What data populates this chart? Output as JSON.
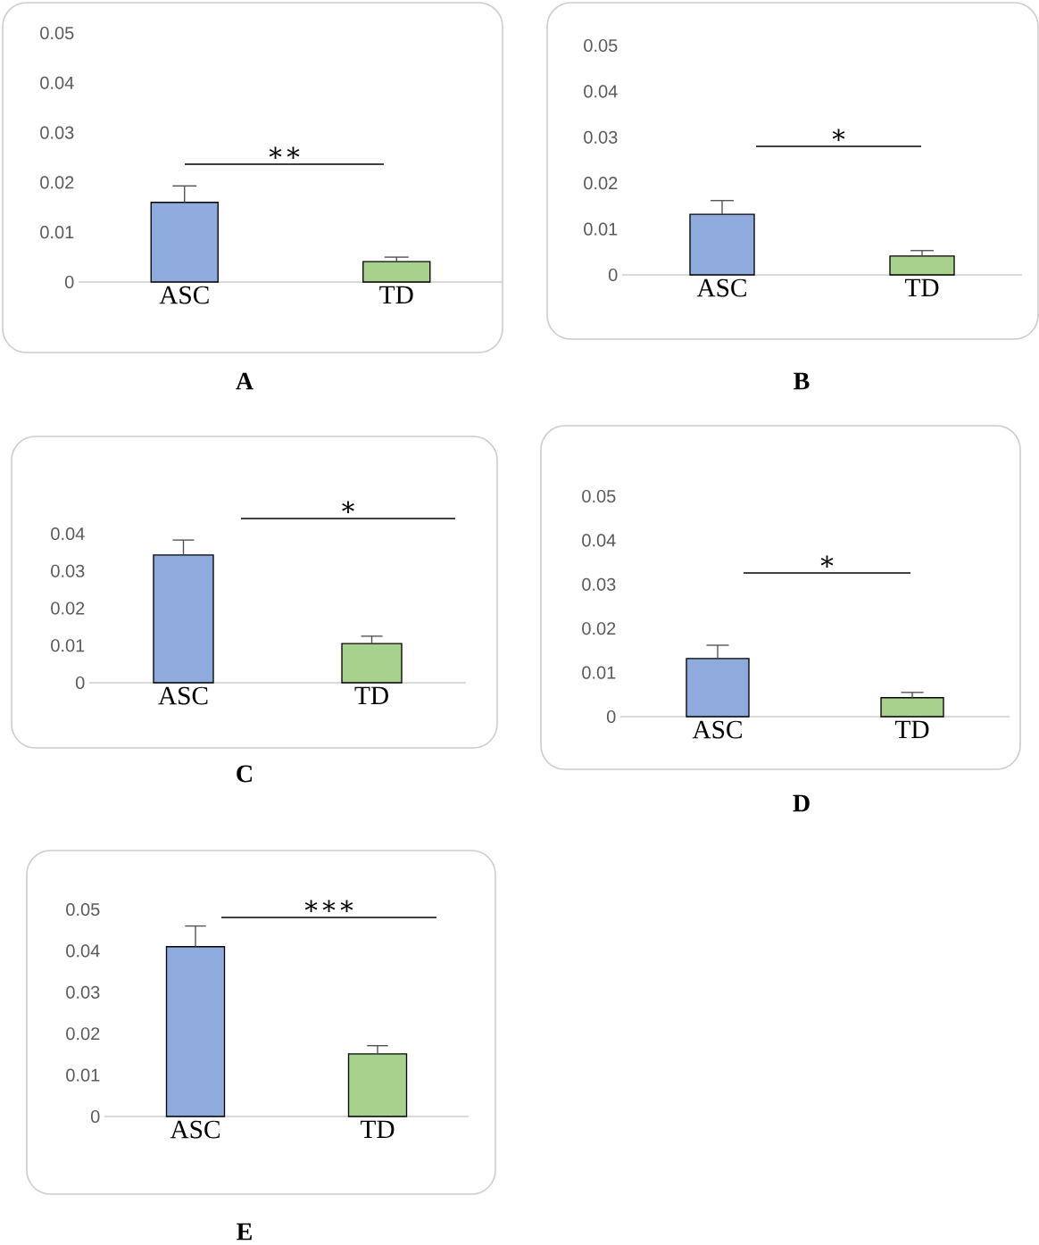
{
  "chart_data": [
    {
      "type": "bar",
      "title": "A",
      "categories": [
        "ASC",
        "TD"
      ],
      "values": [
        0.016,
        0.0041
      ],
      "errors": [
        0.0033,
        0.0009
      ],
      "colors": [
        "#8faadc",
        "#a9d18e"
      ],
      "ylim": [
        0,
        0.05
      ],
      "yticks": [
        0,
        0.01,
        0.02,
        0.03,
        0.04,
        0.05
      ],
      "annotations": [
        "∗∗"
      ]
    },
    {
      "type": "bar",
      "title": "B",
      "categories": [
        "ASC",
        "TD"
      ],
      "values": [
        0.0132,
        0.0041
      ],
      "errors": [
        0.003,
        0.0012
      ],
      "colors": [
        "#8faadc",
        "#a9d18e"
      ],
      "ylim": [
        0,
        0.05
      ],
      "yticks": [
        0,
        0.01,
        0.02,
        0.03,
        0.04,
        0.05
      ],
      "annotations": [
        "∗"
      ]
    },
    {
      "type": "bar",
      "title": "C",
      "categories": [
        "ASC",
        "TD"
      ],
      "values": [
        0.0343,
        0.0105
      ],
      "errors": [
        0.004,
        0.002
      ],
      "colors": [
        "#8faadc",
        "#a9d18e"
      ],
      "ylim": [
        0,
        0.04
      ],
      "yticks": [
        0,
        0.01,
        0.02,
        0.03,
        0.04
      ],
      "annotations": [
        "∗"
      ]
    },
    {
      "type": "bar",
      "title": "D",
      "categories": [
        "ASC",
        "TD"
      ],
      "values": [
        0.0132,
        0.0043
      ],
      "errors": [
        0.003,
        0.0012
      ],
      "colors": [
        "#8faadc",
        "#a9d18e"
      ],
      "ylim": [
        0,
        0.05
      ],
      "yticks": [
        0,
        0.01,
        0.02,
        0.03,
        0.04,
        0.05
      ],
      "annotations": [
        "∗"
      ]
    },
    {
      "type": "bar",
      "title": "E",
      "categories": [
        "ASC",
        "TD"
      ],
      "values": [
        0.041,
        0.0151
      ],
      "errors": [
        0.005,
        0.002
      ],
      "colors": [
        "#8faadc",
        "#a9d18e"
      ],
      "ylim": [
        0,
        0.05
      ],
      "yticks": [
        0,
        0.01,
        0.02,
        0.03,
        0.04,
        0.05
      ],
      "annotations": [
        "∗∗∗"
      ]
    }
  ]
}
